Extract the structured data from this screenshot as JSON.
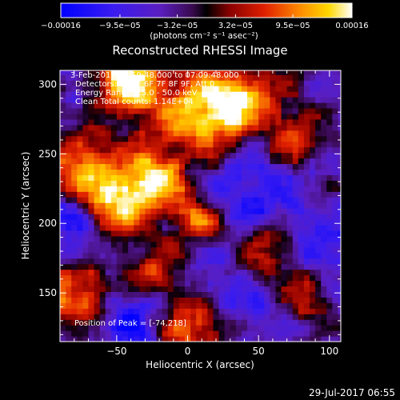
{
  "chart_data": {
    "type": "heatmap",
    "title": "Reconstructed RHESSI Image",
    "xlabel": "Heliocentric X (arcsec)",
    "ylabel": "Heliocentric Y (arcsec)",
    "xlim": [
      -90,
      108
    ],
    "ylim": [
      115,
      310
    ],
    "xticks": [
      -50,
      0,
      50,
      100
    ],
    "xtick_labels": [
      "−50",
      "0",
      "50",
      "100"
    ],
    "yticks": [
      150,
      200,
      250,
      300
    ],
    "ytick_labels": [
      "150",
      "200",
      "250",
      "300"
    ],
    "colorbar": {
      "range": [
        -0.00016,
        0.00016
      ],
      "tick_labels": [
        "−0.00016",
        "−9.5e−05",
        "−3.2e−05",
        "3.2e−05",
        "9.5e−05",
        "0.00016"
      ],
      "tick_values": [
        -0.00016,
        -9.5e-05,
        -3.2e-05,
        3.2e-05,
        9.5e-05,
        0.00016
      ],
      "unit_label": "(photons cm⁻² s⁻¹ asec⁻²)",
      "colormap": "rainbow-heat"
    },
    "annotations": [
      " 3-Feb-2015 06:59:48.000 to 07:09:48.000",
      "Detectors: 3F 5F 6F 7F 8F 9F, Att 0",
      "Energy Range: 25.0 - 50.0 keV",
      "Clean    Total counts: 1.14E+04"
    ],
    "peak_label": "Position of Peak = [-74,218]",
    "peak": [
      -74,
      218
    ],
    "grid": false,
    "sources": [
      {
        "x": -40,
        "y": 300,
        "intensity": 1.0,
        "sigma": 18
      },
      {
        "x": 15,
        "y": 278,
        "intensity": 0.95,
        "sigma": 20
      },
      {
        "x": 45,
        "y": 295,
        "intensity": 0.6,
        "sigma": 15
      },
      {
        "x": -75,
        "y": 250,
        "intensity": 0.7,
        "sigma": 20
      },
      {
        "x": -50,
        "y": 215,
        "intensity": 0.75,
        "sigma": 18
      },
      {
        "x": -20,
        "y": 235,
        "intensity": 0.7,
        "sigma": 16
      },
      {
        "x": 5,
        "y": 205,
        "intensity": 0.55,
        "sigma": 15
      },
      {
        "x": 55,
        "y": 180,
        "intensity": 0.55,
        "sigma": 14
      },
      {
        "x": 85,
        "y": 150,
        "intensity": 0.5,
        "sigma": 14
      },
      {
        "x": -80,
        "y": 150,
        "intensity": 0.7,
        "sigma": 16
      },
      {
        "x": 5,
        "y": 125,
        "intensity": 0.6,
        "sigma": 16
      },
      {
        "x": -25,
        "y": 165,
        "intensity": 0.45,
        "sigma": 14
      },
      {
        "x": 75,
        "y": 265,
        "intensity": 0.5,
        "sigma": 15
      }
    ],
    "negative_regions": [
      {
        "x": -65,
        "y": 275,
        "intensity": 0.5,
        "sigma": 18
      },
      {
        "x": -80,
        "y": 195,
        "intensity": 0.55,
        "sigma": 16
      },
      {
        "x": 40,
        "y": 225,
        "intensity": 0.5,
        "sigma": 22
      },
      {
        "x": 95,
        "y": 175,
        "intensity": 0.5,
        "sigma": 18
      },
      {
        "x": 35,
        "y": 145,
        "intensity": 0.4,
        "sigma": 16
      },
      {
        "x": -40,
        "y": 130,
        "intensity": 0.4,
        "sigma": 16
      }
    ]
  },
  "footer": {
    "timestamp": "29-Jul-2017 06:55"
  }
}
